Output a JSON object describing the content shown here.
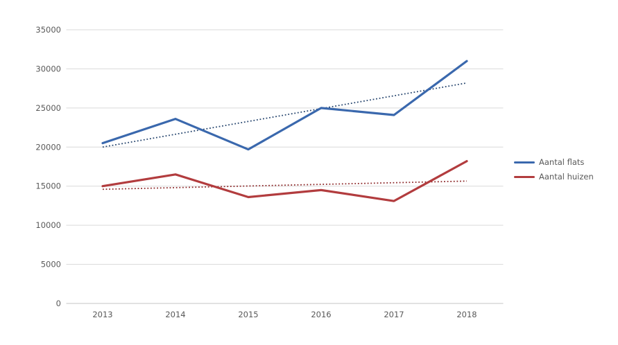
{
  "chart_data": {
    "type": "line",
    "title": "",
    "categories": [
      "2013",
      "2014",
      "2015",
      "2016",
      "2017",
      "2018"
    ],
    "y_ticks": [
      0,
      5000,
      10000,
      15000,
      20000,
      25000,
      30000,
      35000
    ],
    "ylim": [
      0,
      35000
    ],
    "grid": true,
    "legend_position": "right",
    "series": [
      {
        "name": "Aantal flats",
        "color": "#3A68AD",
        "values": [
          20500,
          23600,
          19700,
          25000,
          24100,
          31000
        ],
        "trendline": {
          "style": "dotted",
          "color": "#26456E",
          "start": 20000,
          "end": 28200
        }
      },
      {
        "name": "Aantal huizen",
        "color": "#B23C3E",
        "values": [
          15000,
          16500,
          13600,
          14500,
          13100,
          18200
        ],
        "trendline": {
          "style": "dotted",
          "color": "#8E2A2B",
          "start": 14600,
          "end": 15650
        }
      }
    ]
  },
  "colors": {
    "background": "#FFFFFF",
    "gridline": "#D9D9D9",
    "zero_line": "#C4C4C4",
    "axis_text": "#595959"
  }
}
